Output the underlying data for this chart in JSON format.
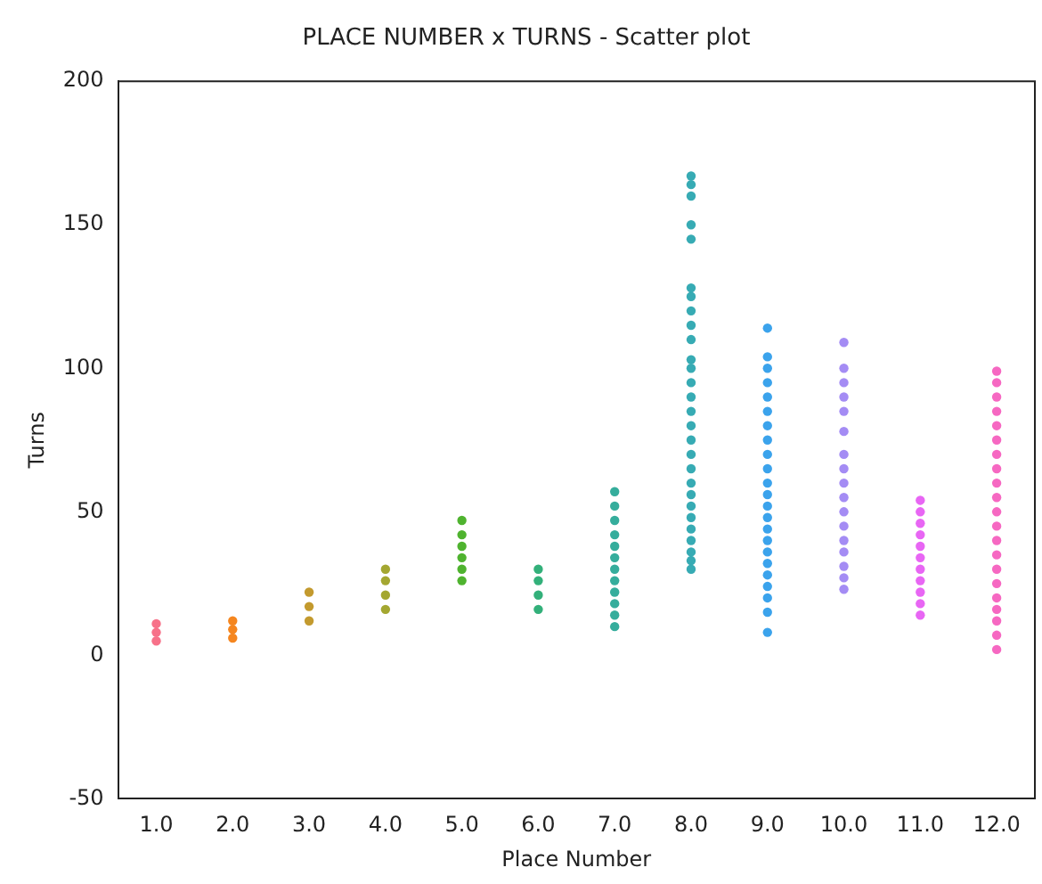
{
  "chart_data": {
    "type": "scatter",
    "title": "PLACE NUMBER x TURNS - Scatter plot",
    "xlabel": "Place Number",
    "ylabel": "Turns",
    "categories": [
      "1.0",
      "2.0",
      "3.0",
      "4.0",
      "5.0",
      "6.0",
      "7.0",
      "8.0",
      "9.0",
      "10.0",
      "11.0",
      "12.0"
    ],
    "ylim": [
      -50,
      200
    ],
    "yticks": [
      -50,
      0,
      50,
      100,
      150,
      200
    ],
    "grid": false,
    "legend": false,
    "marker": "circle",
    "series": [
      {
        "color": "#f77189",
        "x": [
          "1.0",
          "1.0",
          "1.0"
        ],
        "values": [
          5,
          8,
          11
        ]
      },
      {
        "color": "#f5861f",
        "x": [
          "2.0",
          "2.0",
          "2.0"
        ],
        "values": [
          6,
          9,
          12
        ]
      },
      {
        "color": "#c39a2e",
        "x": [
          "3.0",
          "3.0",
          "3.0"
        ],
        "values": [
          12,
          17,
          22
        ]
      },
      {
        "color": "#a4a731",
        "x": [
          "4.0",
          "4.0",
          "4.0",
          "4.0"
        ],
        "values": [
          16,
          21,
          26,
          30
        ]
      },
      {
        "color": "#4fb32f",
        "x": [
          "5.0",
          "5.0",
          "5.0",
          "5.0",
          "5.0",
          "5.0"
        ],
        "values": [
          26,
          30,
          34,
          38,
          42,
          47
        ]
      },
      {
        "color": "#33b07a",
        "x": [
          "6.0",
          "6.0",
          "6.0",
          "6.0"
        ],
        "values": [
          16,
          21,
          26,
          30
        ]
      },
      {
        "color": "#35ad9c",
        "x": [
          "7.0",
          "7.0",
          "7.0",
          "7.0",
          "7.0",
          "7.0",
          "7.0",
          "7.0",
          "7.0",
          "7.0",
          "7.0",
          "7.0"
        ],
        "values": [
          10,
          14,
          18,
          22,
          26,
          30,
          34,
          38,
          42,
          47,
          52,
          57
        ]
      },
      {
        "color": "#37abb4",
        "x": [
          "8.0",
          "8.0",
          "8.0",
          "8.0",
          "8.0",
          "8.0",
          "8.0",
          "8.0",
          "8.0",
          "8.0",
          "8.0",
          "8.0",
          "8.0",
          "8.0",
          "8.0",
          "8.0",
          "8.0",
          "8.0",
          "8.0",
          "8.0",
          "8.0",
          "8.0",
          "8.0",
          "8.0",
          "8.0",
          "8.0",
          "8.0",
          "8.0"
        ],
        "values": [
          30,
          33,
          36,
          40,
          44,
          48,
          52,
          56,
          60,
          65,
          70,
          75,
          80,
          85,
          90,
          95,
          100,
          103,
          110,
          115,
          120,
          125,
          128,
          145,
          150,
          160,
          164,
          167
        ]
      },
      {
        "color": "#3ba3ec",
        "x": [
          "9.0",
          "9.0",
          "9.0",
          "9.0",
          "9.0",
          "9.0",
          "9.0",
          "9.0",
          "9.0",
          "9.0",
          "9.0",
          "9.0",
          "9.0",
          "9.0",
          "9.0",
          "9.0",
          "9.0",
          "9.0",
          "9.0",
          "9.0",
          "9.0",
          "9.0",
          "9.0"
        ],
        "values": [
          8,
          15,
          20,
          24,
          28,
          32,
          36,
          40,
          44,
          48,
          52,
          56,
          60,
          65,
          70,
          75,
          80,
          85,
          90,
          95,
          100,
          104,
          114
        ]
      },
      {
        "color": "#a48cf4",
        "x": [
          "10.0",
          "10.0",
          "10.0",
          "10.0",
          "10.0",
          "10.0",
          "10.0",
          "10.0",
          "10.0",
          "10.0",
          "10.0",
          "10.0",
          "10.0",
          "10.0",
          "10.0",
          "10.0",
          "10.0"
        ],
        "values": [
          23,
          27,
          31,
          36,
          40,
          45,
          50,
          55,
          60,
          65,
          70,
          78,
          85,
          90,
          95,
          100,
          109
        ]
      },
      {
        "color": "#e866f4",
        "x": [
          "11.0",
          "11.0",
          "11.0",
          "11.0",
          "11.0",
          "11.0",
          "11.0",
          "11.0",
          "11.0",
          "11.0",
          "11.0"
        ],
        "values": [
          14,
          18,
          22,
          26,
          30,
          34,
          38,
          42,
          46,
          50,
          54
        ]
      },
      {
        "color": "#f668c2",
        "x": [
          "12.0",
          "12.0",
          "12.0",
          "12.0",
          "12.0",
          "12.0",
          "12.0",
          "12.0",
          "12.0",
          "12.0",
          "12.0",
          "12.0",
          "12.0",
          "12.0",
          "12.0",
          "12.0",
          "12.0",
          "12.0",
          "12.0",
          "12.0",
          "12.0"
        ],
        "values": [
          2,
          7,
          12,
          16,
          20,
          25,
          30,
          35,
          40,
          45,
          50,
          55,
          60,
          65,
          70,
          75,
          80,
          85,
          90,
          95,
          99
        ]
      }
    ]
  }
}
